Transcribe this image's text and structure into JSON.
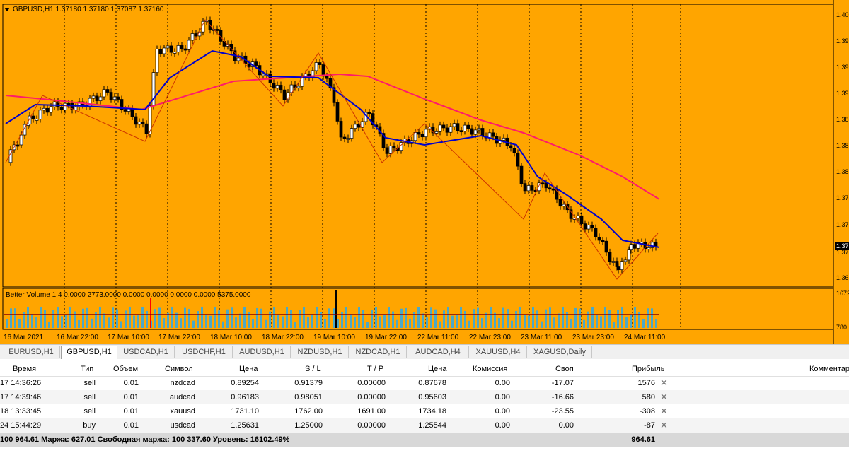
{
  "chart": {
    "title": "GBPUSD,H1  1.37180 1.37180 1.37087 1.37160",
    "indicator": "Better Volume 1.4 0.0000 2773.0000 0.0000 0.0000 0.0000 0.0000 5375.0000",
    "price_scale": [
      "1.40",
      "1.39",
      "1.39",
      "1.39",
      "1.38",
      "1.38",
      "1.38",
      "1.37",
      "1.37",
      "1.37",
      "1.36"
    ],
    "current_price": "1.37",
    "volume_scale_top": "1672",
    "volume_scale_bottom": "780",
    "time_labels": [
      "16 Mar 2021",
      "16 Mar 22:00",
      "17 Mar 10:00",
      "17 Mar 22:00",
      "18 Mar 10:00",
      "18 Mar 22:00",
      "19 Mar 10:00",
      "19 Mar 22:00",
      "22 Mar 11:00",
      "22 Mar 23:00",
      "23 Mar 11:00",
      "23 Mar 23:00",
      "24 Mar 11:00"
    ],
    "colors": {
      "background": "#ffa500",
      "ma_fast": "#0000cc",
      "ma_slow": "#ff1a6b",
      "zigzag": "#cc3300"
    }
  },
  "tabs": [
    "EURUSD,H1",
    "GBPUSD,H1",
    "USDCAD,H1",
    "USDCHF,H1",
    "AUDUSD,H1",
    "NZDUSD,H1",
    "NZDCAD,H1",
    "AUDCAD,H4",
    "XAUUSD,H4",
    "XAGUSD,Daily"
  ],
  "active_tab": "GBPUSD,H1",
  "table": {
    "headers": [
      "Время",
      "Тип",
      "Объем",
      "Символ",
      "Цена",
      "S / L",
      "T / P",
      "Цена",
      "Комиссия",
      "Своп",
      "Прибыль",
      "Комментар"
    ],
    "rows": [
      {
        "time": "17 14:36:26",
        "type": "sell",
        "volume": "0.01",
        "symbol": "nzdcad",
        "price": "0.89254",
        "sl": "0.91379",
        "tp": "0.00000",
        "cur": "0.87678",
        "commission": "0.00",
        "swap": "-17.07",
        "profit": "1576"
      },
      {
        "time": "17 14:39:46",
        "type": "sell",
        "volume": "0.01",
        "symbol": "audcad",
        "price": "0.96183",
        "sl": "0.98051",
        "tp": "0.00000",
        "cur": "0.95603",
        "commission": "0.00",
        "swap": "-16.66",
        "profit": "580"
      },
      {
        "time": "18 13:33:45",
        "type": "sell",
        "volume": "0.01",
        "symbol": "xauusd",
        "price": "1731.10",
        "sl": "1762.00",
        "tp": "1691.00",
        "cur": "1734.18",
        "commission": "0.00",
        "swap": "-23.55",
        "profit": "-308"
      },
      {
        "time": "24 15:44:29",
        "type": "buy",
        "volume": "0.01",
        "symbol": "usdcad",
        "price": "1.25631",
        "sl": "1.25000",
        "tp": "0.00000",
        "cur": "1.25544",
        "commission": "0.00",
        "swap": "0.00",
        "profit": "-87"
      }
    ],
    "summary": "100 964.61  Маржа: 627.01  Свободная маржа: 100 337.60  Уровень: 16102.49%",
    "summary_total": "964.61"
  }
}
